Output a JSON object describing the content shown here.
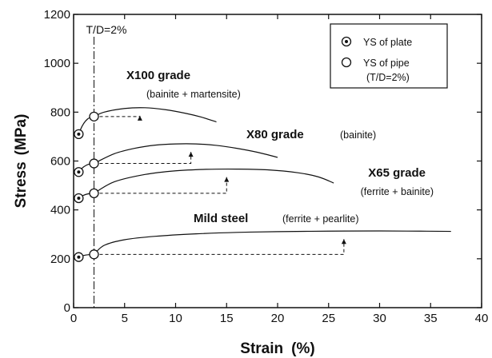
{
  "chart_data": {
    "type": "line",
    "xlabel": "Strain",
    "xunit": "(%)",
    "ylabel": "Stress",
    "yunit": "(MPa)",
    "xlim": [
      0,
      40
    ],
    "ylim": [
      0,
      1200
    ],
    "xticks": [
      0,
      5,
      10,
      15,
      20,
      25,
      30,
      35,
      40
    ],
    "yticks": [
      0,
      200,
      400,
      600,
      800,
      1000,
      1200
    ],
    "grid": false,
    "legend_position": "top-right",
    "legend": {
      "plate": "YS of plate",
      "pipe": "YS of pipe",
      "pipe_note": "(T/D=2%)"
    },
    "td_label": "T/D=2%",
    "td_strain": 2,
    "series": [
      {
        "name": "X100 grade",
        "microstructure": "(bainite + martensite)",
        "ys_plate": [
          0.5,
          710
        ],
        "ys_pipe": [
          2,
          782
        ],
        "arrow_x": 6.5,
        "curve": [
          [
            2,
            782
          ],
          [
            3,
            800
          ],
          [
            5,
            815
          ],
          [
            7,
            818
          ],
          [
            9,
            810
          ],
          [
            11,
            795
          ],
          [
            12.5,
            780
          ],
          [
            14,
            760
          ]
        ]
      },
      {
        "name": "X80 grade",
        "microstructure": "(bainite)",
        "ys_plate": [
          0.5,
          555
        ],
        "ys_pipe": [
          2,
          590
        ],
        "arrow_x": 11.5,
        "curve": [
          [
            2,
            590
          ],
          [
            4,
            630
          ],
          [
            6,
            652
          ],
          [
            8,
            665
          ],
          [
            10,
            670
          ],
          [
            12,
            670
          ],
          [
            14,
            664
          ],
          [
            16,
            652
          ],
          [
            18,
            636
          ],
          [
            20,
            615
          ]
        ]
      },
      {
        "name": "X65 grade",
        "microstructure": "(ferrite + bainite)",
        "ys_plate": [
          0.5,
          448
        ],
        "ys_pipe": [
          2,
          468
        ],
        "arrow_x": 15,
        "curve": [
          [
            2,
            468
          ],
          [
            4,
            515
          ],
          [
            7,
            545
          ],
          [
            10,
            560
          ],
          [
            13,
            566
          ],
          [
            16,
            567
          ],
          [
            19,
            564
          ],
          [
            22,
            552
          ],
          [
            24,
            535
          ],
          [
            25.5,
            510
          ]
        ]
      },
      {
        "name": "Mild steel",
        "microstructure": "(ferrite + pearlite)",
        "ys_plate": [
          0.5,
          207
        ],
        "ys_pipe": [
          2,
          218
        ],
        "arrow_x": 26.5,
        "curve": [
          [
            2,
            218
          ],
          [
            3,
            255
          ],
          [
            5,
            278
          ],
          [
            8,
            292
          ],
          [
            12,
            302
          ],
          [
            16,
            308
          ],
          [
            20,
            311
          ],
          [
            25,
            313
          ],
          [
            30,
            314
          ],
          [
            34,
            313
          ],
          [
            37,
            312
          ]
        ]
      }
    ]
  }
}
